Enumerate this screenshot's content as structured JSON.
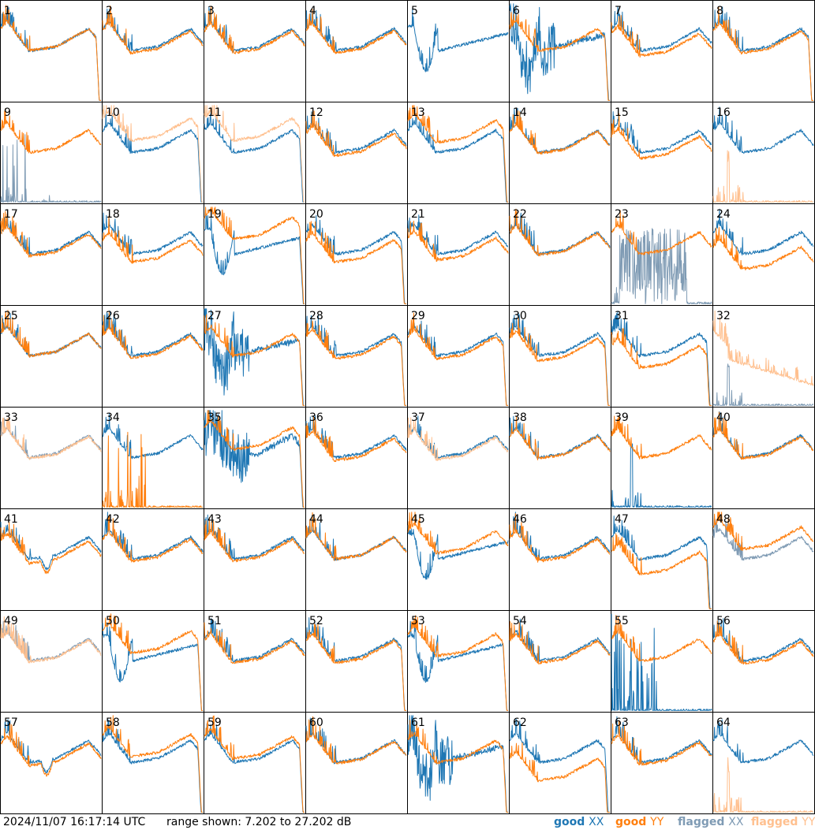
{
  "chart_data": {
    "type": "line",
    "layout": "small-multiples",
    "rows": 8,
    "cols": 8,
    "panel_labels": [
      "1",
      "2",
      "3",
      "4",
      "5",
      "6",
      "7",
      "8",
      "9",
      "10",
      "11",
      "12",
      "13",
      "14",
      "15",
      "16",
      "17",
      "18",
      "19",
      "20",
      "21",
      "22",
      "23",
      "24",
      "25",
      "26",
      "27",
      "28",
      "29",
      "30",
      "31",
      "32",
      "33",
      "34",
      "35",
      "36",
      "37",
      "38",
      "39",
      "40",
      "41",
      "42",
      "43",
      "44",
      "45",
      "46",
      "47",
      "48",
      "49",
      "50",
      "51",
      "52",
      "53",
      "54",
      "55",
      "56",
      "57",
      "58",
      "59",
      "60",
      "61",
      "62",
      "63",
      "64"
    ],
    "y_range_db": [
      7.202,
      27.202
    ],
    "series": [
      {
        "name": "good XX",
        "color": "#1f77b4"
      },
      {
        "name": "good YY",
        "color": "#ff7f0e"
      },
      {
        "name": "flagged XX",
        "color": "#7f9bb4"
      },
      {
        "name": "flagged YY",
        "color": "#ffc08f"
      }
    ],
    "panels": {
      "1": {
        "xx": "normal",
        "yy": "normal",
        "drop": 1.0,
        "gap": 0,
        "spiky": 1
      },
      "2": {
        "xx": "normal",
        "yy": "normal",
        "drop": 0.0,
        "gap": 0.02
      },
      "3": {
        "xx": "normal",
        "yy": "normal",
        "drop": 0.0,
        "gap": 0.02
      },
      "4": {
        "xx": "normal",
        "yy": "normal",
        "drop": 0.0,
        "gap": 0.02
      },
      "5": {
        "xx": "dip",
        "yy": "none",
        "drop": 0.0
      },
      "6": {
        "xx": "noisydip",
        "yy": "normal",
        "drop": 1.0
      },
      "7": {
        "xx": "normal",
        "yy": "normal",
        "drop": 0.0,
        "gap": 0.05
      },
      "8": {
        "xx": "normal",
        "yy": "normal",
        "drop": 1.0,
        "gap": 0.02
      },
      "9": {
        "xx": "flagged_spikes",
        "yy": "normal",
        "drop": 0.0
      },
      "10": {
        "xx": "normal",
        "yy": "flagged",
        "drop": 1.0,
        "gap": -0.12
      },
      "11": {
        "xx": "normal",
        "yy": "flagged",
        "drop": 1.0,
        "gap": -0.12
      },
      "12": {
        "xx": "normal",
        "yy": "normal",
        "drop": 0.0,
        "gap": 0.03
      },
      "13": {
        "xx": "normal",
        "yy": "normal",
        "drop": 1.0,
        "gap": -0.1
      },
      "14": {
        "xx": "normal",
        "yy": "normal",
        "drop": 0.0,
        "gap": 0.01
      },
      "15": {
        "xx": "normal",
        "yy": "normal",
        "drop": 0.0,
        "gap": 0.06
      },
      "16": {
        "xx": "normal",
        "yy": "flagged_low",
        "drop": 0.0
      },
      "17": {
        "xx": "normal",
        "yy": "normal",
        "drop": 0.0,
        "gap": 0.02
      },
      "18": {
        "xx": "normal",
        "yy": "normal",
        "drop": 0.0,
        "gap": 0.08
      },
      "19": {
        "xx": "dip",
        "yy": "normal",
        "drop": 1.0,
        "gap": -0.15
      },
      "20": {
        "xx": "normal",
        "yy": "normal",
        "drop": 1.0,
        "gap": 0.08
      },
      "21": {
        "xx": "normal",
        "yy": "normal",
        "drop": 0.0,
        "gap": 0.06
      },
      "22": {
        "xx": "normal",
        "yy": "normal",
        "drop": 0.0,
        "gap": 0.01
      },
      "23": {
        "xx": "flagged_noise",
        "yy": "normal",
        "drop": 0.0
      },
      "24": {
        "xx": "normal",
        "yy": "normal",
        "drop": 0.0,
        "gap": 0.15
      },
      "25": {
        "xx": "normal",
        "yy": "normal",
        "drop": 0.0,
        "gap": 0.0
      },
      "26": {
        "xx": "normal",
        "yy": "normal",
        "drop": 0.0,
        "gap": 0.02
      },
      "27": {
        "xx": "noisydip",
        "yy": "normal",
        "drop": 1.0
      },
      "28": {
        "xx": "normal",
        "yy": "normal",
        "drop": 1.0,
        "gap": 0.03
      },
      "29": {
        "xx": "normal",
        "yy": "normal",
        "drop": 1.0,
        "gap": 0.03
      },
      "30": {
        "xx": "normal",
        "yy": "normal",
        "drop": 1.0,
        "gap": 0.05
      },
      "31": {
        "xx": "normal",
        "yy": "normal",
        "drop": 1.0,
        "gap": 0.12
      },
      "32": {
        "xx": "flagged_low",
        "yy": "flagged_spiky",
        "drop": 0.0
      },
      "33": {
        "xx": "flagged",
        "yy": "flagged",
        "drop": 0.0,
        "gap": 0.01
      },
      "34": {
        "xx": "normal",
        "yy": "low_spikes",
        "drop": 0.0
      },
      "35": {
        "xx": "noisy",
        "yy": "normal",
        "drop": 1.0,
        "gap": -0.08
      },
      "36": {
        "xx": "normal",
        "yy": "normal",
        "drop": 0.0,
        "gap": 0.03
      },
      "37": {
        "xx": "normal",
        "yy": "flagged",
        "drop": 0.0,
        "gap": 0.02
      },
      "38": {
        "xx": "normal",
        "yy": "normal",
        "drop": 0.0,
        "gap": 0.01
      },
      "39": {
        "xx": "low_spike",
        "yy": "normal",
        "drop": 0.0
      },
      "40": {
        "xx": "normal",
        "yy": "normal",
        "drop": 0.0,
        "gap": 0.01
      },
      "41": {
        "xx": "normal",
        "yy": "normal",
        "drop": 0.0,
        "gap": 0.04,
        "bump": 1
      },
      "42": {
        "xx": "normal",
        "yy": "normal",
        "drop": 0.0,
        "gap": 0.02
      },
      "43": {
        "xx": "normal",
        "yy": "normal",
        "drop": 0.0,
        "gap": 0.02
      },
      "44": {
        "xx": "normal",
        "yy": "normal",
        "drop": 0.0,
        "gap": 0.0
      },
      "45": {
        "xx": "dip",
        "yy": "normal",
        "drop": 0.0,
        "gap": -0.06
      },
      "46": {
        "xx": "normal",
        "yy": "normal",
        "drop": 0.0,
        "gap": 0.02
      },
      "47": {
        "xx": "normal",
        "yy": "normal",
        "drop": 1.0,
        "gap": 0.15
      },
      "48": {
        "xx": "flagged",
        "yy": "normal",
        "drop": 0.0,
        "gap": -0.1
      },
      "49": {
        "xx": "flagged",
        "yy": "flagged",
        "drop": 0.0,
        "gap": 0.01
      },
      "50": {
        "xx": "dip",
        "yy": "normal",
        "drop": 1.0,
        "gap": -0.08
      },
      "51": {
        "xx": "normal",
        "yy": "normal",
        "drop": 0.0,
        "gap": 0.02
      },
      "52": {
        "xx": "normal",
        "yy": "normal",
        "drop": 1.0,
        "gap": 0.02
      },
      "53": {
        "xx": "dip",
        "yy": "normal",
        "drop": 1.0,
        "gap": -0.05
      },
      "54": {
        "xx": "normal",
        "yy": "normal",
        "drop": 0.0,
        "gap": 0.02
      },
      "55": {
        "xx": "low_noise",
        "yy": "normal",
        "drop": 0.0
      },
      "56": {
        "xx": "normal",
        "yy": "normal",
        "drop": 0.0,
        "gap": 0.03
      },
      "57": {
        "xx": "normal",
        "yy": "normal",
        "drop": 0.0,
        "gap": 0.03,
        "bump": 1
      },
      "58": {
        "xx": "normal",
        "yy": "normal",
        "drop": 1.0,
        "gap": -0.06
      },
      "59": {
        "xx": "normal",
        "yy": "normal",
        "drop": 1.0,
        "gap": -0.04
      },
      "60": {
        "xx": "normal",
        "yy": "normal",
        "drop": 0.0,
        "gap": 0.01
      },
      "61": {
        "xx": "noisydip",
        "yy": "normal",
        "drop": 1.0
      },
      "62": {
        "xx": "normal",
        "yy": "normal",
        "drop": 1.0,
        "gap": 0.18
      },
      "63": {
        "xx": "normal",
        "yy": "normal",
        "drop": 0.0,
        "gap": 0.02
      },
      "64": {
        "xx": "normal",
        "yy": "flagged_low",
        "drop": 0.0
      }
    }
  },
  "footer": {
    "timestamp": "2024/11/07 16:17:14 UTC",
    "range_text": "range shown: 7.202 to 27.202 dB",
    "legend": [
      {
        "label": "good",
        "pol": "XX",
        "color": "#1f77b4"
      },
      {
        "label": "good",
        "pol": "YY",
        "color": "#ff7f0e"
      },
      {
        "label": "flagged",
        "pol": "XX",
        "color": "#7f9bb4"
      },
      {
        "label": "flagged",
        "pol": "YY",
        "color": "#ffc08f"
      }
    ]
  }
}
